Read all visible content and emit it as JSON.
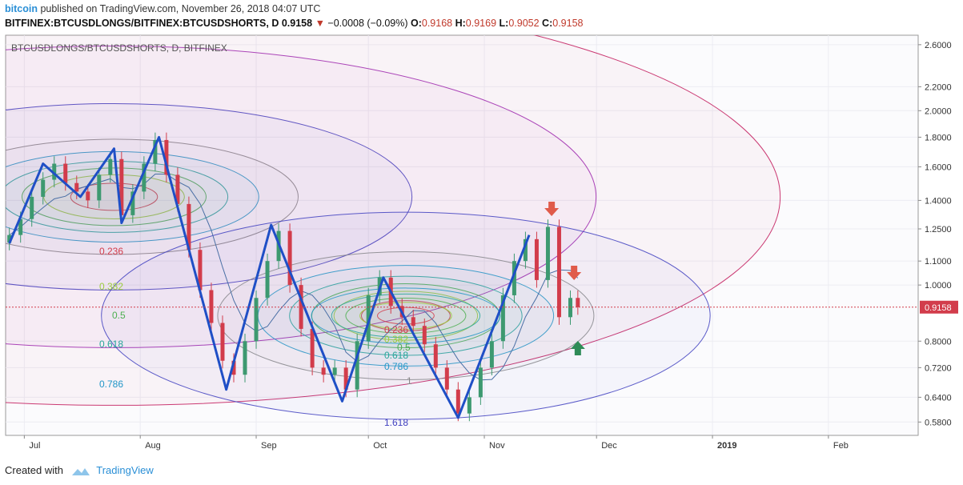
{
  "header": {
    "user": "bitcoin",
    "published_text": "published on TradingView.com, November 26, 2018 04:07 UTC",
    "symbol": "BITFINEX:BTCUSDLONGS/BITFINEX:BTCUSDSHORTS, D",
    "last": "0.9158",
    "change": "−0.0008 (−0.09%)",
    "o_label": "O:",
    "o": "0.9168",
    "h_label": "H:",
    "h": "0.9169",
    "l_label": "L:",
    "l": "0.9052",
    "c_label": "C:",
    "c": "0.9158"
  },
  "footer": {
    "created_with": "Created with",
    "brand": "TradingView"
  },
  "colors": {
    "up": "#3d9970",
    "down": "#d23c4b",
    "zigzag": "#1f4fc6",
    "ma": "#4a6fa5",
    "price_line": "#d23c4b",
    "arrow_down": "#e05b4a",
    "arrow_up": "#2e8b57"
  },
  "chart_data": {
    "type": "candlestick",
    "title": "BTCUSDLONGS/BTCUSDSHORTS, D, BITFINEX",
    "y_scale": "log",
    "ylim": [
      0.55,
      2.7
    ],
    "y_ticks": [
      "2.6000",
      "2.2000",
      "2.0000",
      "1.8000",
      "1.6000",
      "1.4000",
      "1.2500",
      "1.1000",
      "1.0000",
      "0.8000",
      "0.7200",
      "0.6400",
      "0.5800"
    ],
    "x_ticks": [
      "Jul",
      "Aug",
      "Sep",
      "Oct",
      "Nov",
      "Dec",
      "2019",
      "Feb"
    ],
    "last_price_label": "0.9158",
    "last_price": 0.9158,
    "candles": [
      {
        "date": "2018-06-27",
        "close": 1.22
      },
      {
        "date": "2018-06-30",
        "close": 1.3
      },
      {
        "date": "2018-07-03",
        "close": 1.42
      },
      {
        "date": "2018-07-06",
        "close": 1.52
      },
      {
        "date": "2018-07-09",
        "close": 1.62
      },
      {
        "date": "2018-07-12",
        "close": 1.5
      },
      {
        "date": "2018-07-15",
        "close": 1.45
      },
      {
        "date": "2018-07-18",
        "close": 1.4
      },
      {
        "date": "2018-07-21",
        "close": 1.55
      },
      {
        "date": "2018-07-24",
        "close": 1.65
      },
      {
        "date": "2018-07-27",
        "close": 1.32
      },
      {
        "date": "2018-07-30",
        "close": 1.45
      },
      {
        "date": "2018-08-02",
        "close": 1.62
      },
      {
        "date": "2018-08-05",
        "close": 1.78
      },
      {
        "date": "2018-08-08",
        "close": 1.55
      },
      {
        "date": "2018-08-11",
        "close": 1.38
      },
      {
        "date": "2018-08-14",
        "close": 1.15
      },
      {
        "date": "2018-08-17",
        "close": 0.98
      },
      {
        "date": "2018-08-20",
        "close": 0.86
      },
      {
        "date": "2018-08-23",
        "close": 0.74
      },
      {
        "date": "2018-08-26",
        "close": 0.7
      },
      {
        "date": "2018-08-29",
        "close": 0.8
      },
      {
        "date": "2018-09-01",
        "close": 0.95
      },
      {
        "date": "2018-09-04",
        "close": 1.1
      },
      {
        "date": "2018-09-07",
        "close": 1.24
      },
      {
        "date": "2018-09-10",
        "close": 1.0
      },
      {
        "date": "2018-09-13",
        "close": 0.84
      },
      {
        "date": "2018-09-16",
        "close": 0.72
      },
      {
        "date": "2018-09-19",
        "close": 0.7
      },
      {
        "date": "2018-09-22",
        "close": 0.72
      },
      {
        "date": "2018-09-25",
        "close": 0.66
      },
      {
        "date": "2018-09-28",
        "close": 0.8
      },
      {
        "date": "2018-10-01",
        "close": 0.96
      },
      {
        "date": "2018-10-04",
        "close": 1.03
      },
      {
        "date": "2018-10-07",
        "close": 0.92
      },
      {
        "date": "2018-10-10",
        "close": 0.88
      },
      {
        "date": "2018-10-13",
        "close": 0.85
      },
      {
        "date": "2018-10-16",
        "close": 0.79
      },
      {
        "date": "2018-10-19",
        "close": 0.72
      },
      {
        "date": "2018-10-22",
        "close": 0.66
      },
      {
        "date": "2018-10-25",
        "close": 0.6
      },
      {
        "date": "2018-10-28",
        "close": 0.64
      },
      {
        "date": "2018-10-31",
        "close": 0.72
      },
      {
        "date": "2018-11-03",
        "close": 0.8
      },
      {
        "date": "2018-11-06",
        "close": 0.96
      },
      {
        "date": "2018-11-09",
        "close": 1.1
      },
      {
        "date": "2018-11-12",
        "close": 1.2
      },
      {
        "date": "2018-11-15",
        "close": 1.02
      },
      {
        "date": "2018-11-18",
        "close": 1.26
      },
      {
        "date": "2018-11-21",
        "close": 0.88
      },
      {
        "date": "2018-11-24",
        "close": 0.95
      },
      {
        "date": "2018-11-26",
        "close": 0.9158
      }
    ],
    "zigzag": [
      {
        "date": "2018-06-27",
        "value": 1.18
      },
      {
        "date": "2018-07-06",
        "value": 1.62
      },
      {
        "date": "2018-07-16",
        "value": 1.42
      },
      {
        "date": "2018-07-25",
        "value": 1.72
      },
      {
        "date": "2018-07-27",
        "value": 1.28
      },
      {
        "date": "2018-08-06",
        "value": 1.8
      },
      {
        "date": "2018-08-24",
        "value": 0.66
      },
      {
        "date": "2018-09-05",
        "value": 1.27
      },
      {
        "date": "2018-09-24",
        "value": 0.63
      },
      {
        "date": "2018-10-05",
        "value": 1.03
      },
      {
        "date": "2018-10-25",
        "value": 0.59
      },
      {
        "date": "2018-11-13",
        "value": 1.22
      }
    ],
    "fib_levels": [
      "0.236",
      "0.382",
      "0.5",
      "0.618",
      "0.786",
      "1",
      "1.618"
    ],
    "fib_colors": [
      "#d23c4b",
      "#9ccc3c",
      "#4caf50",
      "#26a69a",
      "#2196c8",
      "#888888",
      "#3f3fbf"
    ]
  }
}
